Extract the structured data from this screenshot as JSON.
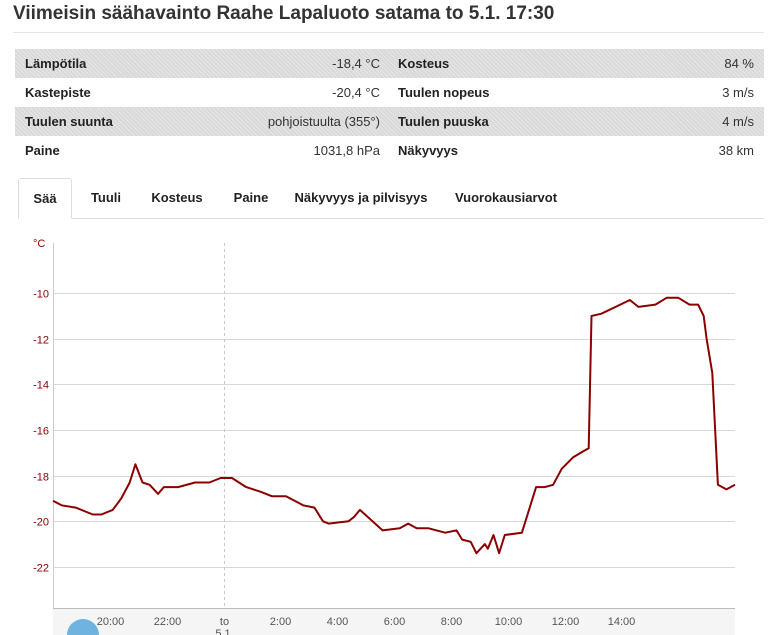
{
  "title": "Viimeisin säähavainto Raahe Lapaluoto satama to 5.1. 17:30",
  "observations": [
    {
      "label_left": "Lämpötila",
      "value_left": "-18,4 °C",
      "label_right": "Kosteus",
      "value_right": "84 %"
    },
    {
      "label_left": "Kastepiste",
      "value_left": "-20,4 °C",
      "label_right": "Tuulen nopeus",
      "value_right": "3 m/s"
    },
    {
      "label_left": "Tuulen suunta",
      "value_left": "pohjoistuulta (355°)",
      "label_right": "Tuulen puuska",
      "value_right": "4 m/s"
    },
    {
      "label_left": "Paine",
      "value_left": "1031,8 hPa",
      "label_right": "Näkyvyys",
      "value_right": "38 km"
    }
  ],
  "tabs": [
    {
      "label": "Sää",
      "active": true
    },
    {
      "label": "Tuuli",
      "active": false
    },
    {
      "label": "Kosteus",
      "active": false
    },
    {
      "label": "Paine",
      "active": false
    },
    {
      "label": "Näkyvyys ja pilvisyys",
      "active": false
    },
    {
      "label": "Vuorokausiarvot",
      "active": false
    }
  ],
  "chart_data": {
    "type": "line",
    "title": "",
    "xlabel": "",
    "ylabel": "°C",
    "ylim": [
      -23.8,
      -7.8
    ],
    "xlim": [
      18.0,
      42.0
    ],
    "yticks": [
      -10,
      -12,
      -14,
      -16,
      -18,
      -20,
      -22
    ],
    "xtick_labels": [
      "20:00",
      "22:00",
      "to 5.1.",
      "2:00",
      "4:00",
      "6:00",
      "8:00",
      "10:00",
      "12:00",
      "14:00"
    ],
    "xtick_hours": [
      20,
      22,
      24,
      26,
      28,
      30,
      32,
      34,
      36,
      38
    ],
    "grid": true,
    "line_color": "#8b0000",
    "series": [
      {
        "name": "",
        "x": [
          18.0,
          18.3,
          18.8,
          19.4,
          19.7,
          20.1,
          20.4,
          20.7,
          20.9,
          21.15,
          21.4,
          21.7,
          21.9,
          22.4,
          23.0,
          23.5,
          23.9,
          24.3,
          24.8,
          25.3,
          25.7,
          26.2,
          26.8,
          27.2,
          27.5,
          27.7,
          28.4,
          28.6,
          28.8,
          29.6,
          30.2,
          30.5,
          30.8,
          31.2,
          31.8,
          32.2,
          32.4,
          32.7,
          32.9,
          33.2,
          33.3,
          33.5,
          33.7,
          33.9,
          34.5,
          35.0,
          35.3,
          35.6,
          35.9,
          36.3,
          36.7,
          36.85,
          36.95,
          37.3,
          37.8,
          38.3,
          38.6,
          39.2,
          39.6,
          40.0,
          40.4,
          40.7,
          40.9,
          41.0,
          41.2,
          41.4,
          41.7,
          42.0
        ],
        "y": [
          -19.1,
          -19.3,
          -19.4,
          -19.7,
          -19.7,
          -19.5,
          -19.0,
          -18.3,
          -17.5,
          -18.3,
          -18.4,
          -18.8,
          -18.5,
          -18.5,
          -18.3,
          -18.3,
          -18.1,
          -18.1,
          -18.5,
          -18.7,
          -18.9,
          -18.9,
          -19.3,
          -19.4,
          -20.0,
          -20.1,
          -20.0,
          -19.8,
          -19.5,
          -20.4,
          -20.3,
          -20.1,
          -20.3,
          -20.3,
          -20.5,
          -20.4,
          -20.8,
          -20.9,
          -21.4,
          -21.0,
          -21.2,
          -20.6,
          -21.4,
          -20.6,
          -20.5,
          -18.5,
          -18.5,
          -18.4,
          -17.7,
          -17.2,
          -16.9,
          -16.8,
          -11.0,
          -10.9,
          -10.6,
          -10.3,
          -10.6,
          -10.5,
          -10.2,
          -10.2,
          -10.5,
          -10.5,
          -11.0,
          -12.0,
          -13.5,
          -18.4,
          -18.6,
          -18.4
        ]
      }
    ]
  }
}
